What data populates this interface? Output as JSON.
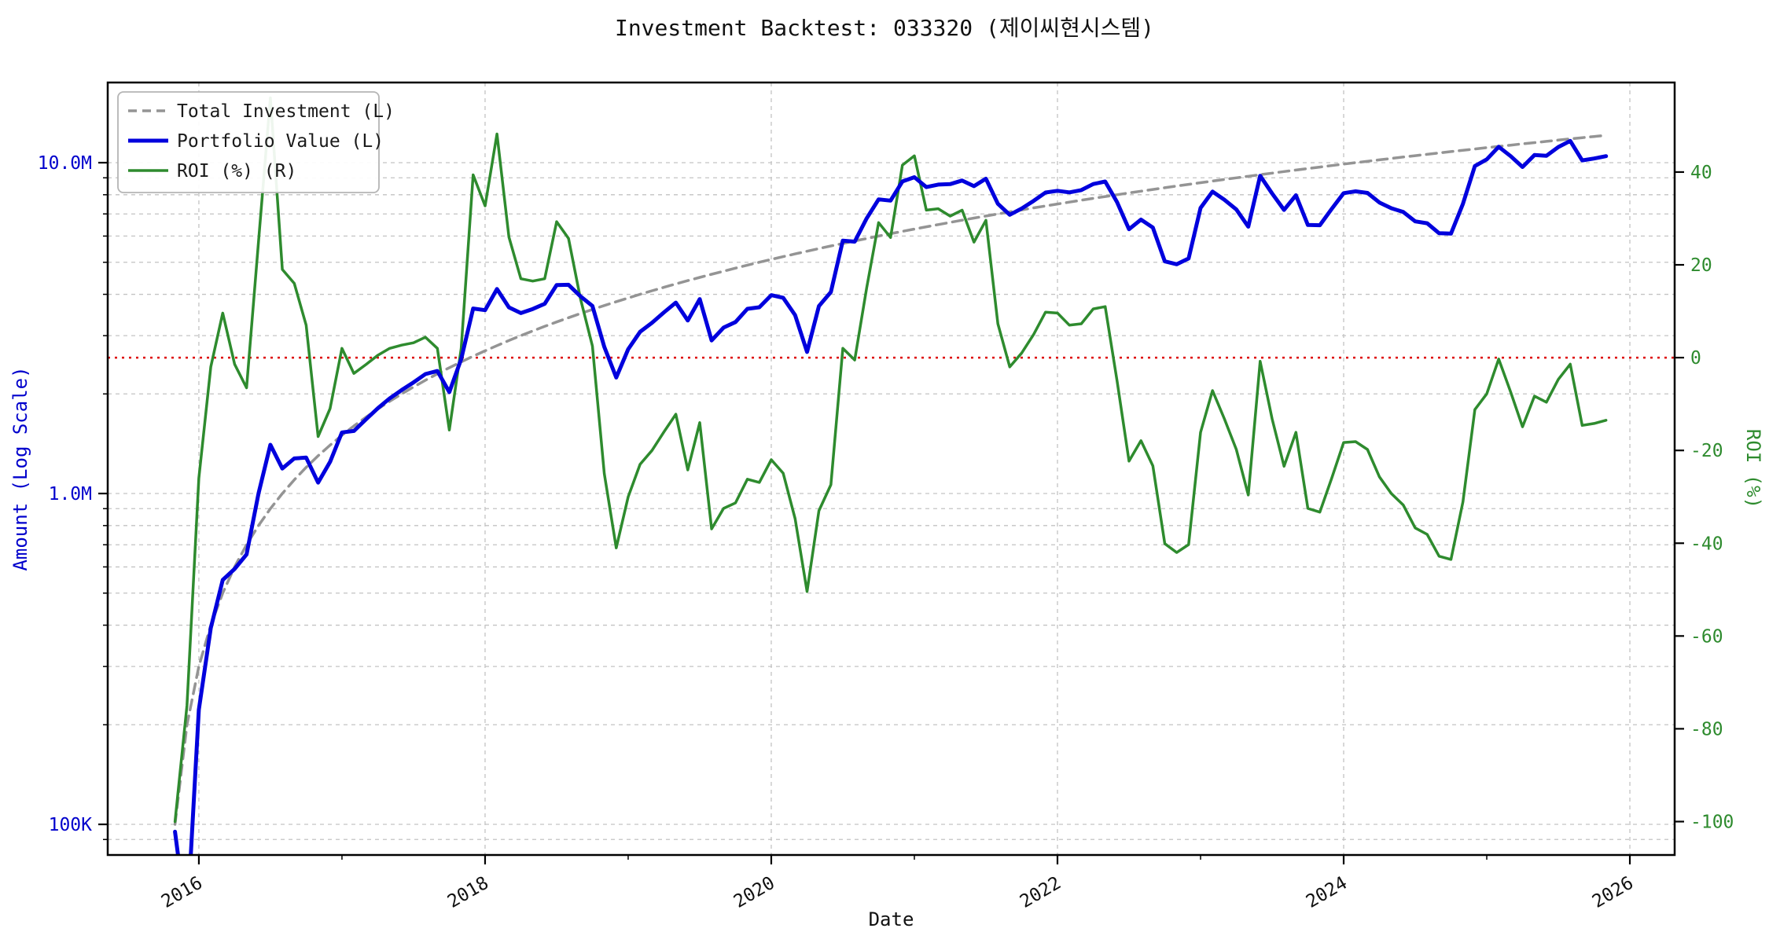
{
  "title": "Investment Backtest: 033320 (제이씨현시스템)",
  "legend": {
    "items": [
      {
        "label": "Total Investment (L)",
        "color": "#949494",
        "style": "dashed"
      },
      {
        "label": "Portfolio Value (L)",
        "color": "#0000dd",
        "style": "solid"
      },
      {
        "label": "ROI (%) (R)",
        "color": "#2e8b2e",
        "style": "solid"
      }
    ]
  },
  "chart_data": {
    "type": "line",
    "title": "Investment Backtest: 033320 (제이씨현시스템)",
    "xlabel": "Date",
    "left_axis": {
      "label": "Amount (Log Scale)",
      "scale": "log",
      "color": "#0000cc",
      "range": [
        80800,
        17470000
      ],
      "major_ticks": [
        {
          "value": 100000,
          "label": "100K"
        },
        {
          "value": 1000000,
          "label": "1.0M"
        },
        {
          "value": 10000000,
          "label": "10.0M"
        }
      ]
    },
    "right_axis": {
      "label": "ROI (%)",
      "color": "#2e8b2e",
      "range": [
        -107.2,
        59.3
      ],
      "major_ticks": [
        40,
        20,
        0,
        -20,
        -40,
        -60,
        -80,
        -100
      ]
    },
    "x_axis": {
      "label": "Date",
      "range_years": [
        2015.363,
        2026.313
      ],
      "major_ticks": [
        2016,
        2018,
        2020,
        2022,
        2024,
        2026
      ],
      "minor_ticks": [
        2017,
        2019,
        2021,
        2023,
        2025
      ]
    },
    "zero_line": {
      "value": 0,
      "color": "#dd0000",
      "style": "dotted",
      "axis": "right"
    },
    "grid": {
      "show": true,
      "color": "#c3c3c3"
    },
    "x": [
      "2015-11",
      "2015-12",
      "2016-01",
      "2016-02",
      "2016-03",
      "2016-04",
      "2016-05",
      "2016-06",
      "2016-07",
      "2016-08",
      "2016-09",
      "2016-10",
      "2016-11",
      "2016-12",
      "2017-01",
      "2017-02",
      "2017-03",
      "2017-04",
      "2017-05",
      "2017-06",
      "2017-07",
      "2017-08",
      "2017-09",
      "2017-10",
      "2017-11",
      "2017-12",
      "2018-01",
      "2018-02",
      "2018-03",
      "2018-04",
      "2018-05",
      "2018-06",
      "2018-07",
      "2018-08",
      "2018-09",
      "2018-10",
      "2018-11",
      "2018-12",
      "2019-01",
      "2019-02",
      "2019-03",
      "2019-04",
      "2019-05",
      "2019-06",
      "2019-07",
      "2019-08",
      "2019-09",
      "2019-10",
      "2019-11",
      "2019-12",
      "2020-01",
      "2020-02",
      "2020-03",
      "2020-04",
      "2020-05",
      "2020-06",
      "2020-07",
      "2020-08",
      "2020-09",
      "2020-10",
      "2020-11",
      "2020-12",
      "2021-01",
      "2021-02",
      "2021-03",
      "2021-04",
      "2021-05",
      "2021-06",
      "2021-07",
      "2021-08",
      "2021-09",
      "2021-10",
      "2021-11",
      "2021-12",
      "2022-01",
      "2022-02",
      "2022-03",
      "2022-04",
      "2022-05",
      "2022-06",
      "2022-07",
      "2022-08",
      "2022-09",
      "2022-10",
      "2022-11",
      "2022-12",
      "2023-01",
      "2023-02",
      "2023-03",
      "2023-04",
      "2023-05",
      "2023-06",
      "2023-07",
      "2023-08",
      "2023-09",
      "2023-10",
      "2023-11",
      "2023-12",
      "2024-01",
      "2024-02",
      "2024-03",
      "2024-04",
      "2024-05",
      "2024-06",
      "2024-07",
      "2024-08",
      "2024-09",
      "2024-10",
      "2024-11",
      "2024-12",
      "2025-01",
      "2025-02",
      "2025-03",
      "2025-04",
      "2025-05",
      "2025-06",
      "2025-07",
      "2025-08",
      "2025-09",
      "2025-10",
      "2025-11"
    ],
    "series": [
      {
        "name": "Total Investment (L)",
        "axis": "left",
        "color": "#949494",
        "style": "dashed",
        "rule": {
          "start": 100000,
          "monthly_add": 100000
        }
      },
      {
        "name": "Portfolio Value (L)",
        "axis": "left",
        "color": "#0000dd",
        "style": "solid",
        "values": [
          95000,
          50000,
          222000,
          392000,
          548000,
          591600,
          654500,
          1000000,
          1404000,
          1190000,
          1276000,
          1284000,
          1079000,
          1246000,
          1530000,
          1545600,
          1674500,
          1809000,
          1938000,
          2054000,
          2167200,
          2296800,
          2346000,
          2025600,
          2550000,
          3624400,
          3582900,
          4149600,
          3654000,
          3510000,
          3611500,
          3744000,
          4266900,
          4273800,
          3944500,
          3690000,
          2775000,
          2242000,
          2730000,
          3080000,
          3280000,
          3528000,
          3775400,
          3335200,
          3870000,
          2902600,
          3172500,
          3297600,
          3616200,
          3655000,
          3978000,
          3905200,
          3460900,
          2678400,
          3685000,
          4065600,
          5814000,
          5771000,
          6785000,
          7746000,
          7679900,
          8773000,
          9040500,
          8435200,
          8586500,
          8613000,
          8830600,
          8493200,
          8942400,
          7511000,
          6958000,
          7272000,
          7665000,
          8125200,
          8220000,
          8132000,
          8262100,
          8619000,
          8769000,
          7600000,
          6293700,
          6732200,
          6366100,
          5031600,
          4930000,
          5134200,
          7299300,
          8175200,
          7725200,
          7218000,
          6406400,
          9126400,
          8072400,
          7200400,
          7970500,
          6480000,
          6469900,
          7252000,
          8088300,
          8190000,
          8100200,
          7578600,
          7282100,
          7092800,
          6646500,
          6561400,
          6120400,
          6102000,
          7510100,
          9768000,
          10234200,
          11166400,
          10463800,
          9701400,
          10545500,
          10486400,
          11150100,
          11634800,
          10162600,
          10296000,
          10466500
        ]
      },
      {
        "name": "ROI (%) (R)",
        "axis": "right",
        "color": "#2e8b2e",
        "style": "solid",
        "values": [
          -100,
          -75,
          -26,
          -2,
          9.6,
          -1.4,
          -6.5,
          25,
          56,
          19,
          16,
          7,
          -17,
          -11,
          2,
          -3.4,
          -1.5,
          0.5,
          2,
          2.7,
          3.2,
          4.4,
          2,
          -15.6,
          2,
          39.4,
          32.7,
          48.2,
          26,
          17,
          16.5,
          17,
          29.3,
          25.7,
          12.7,
          2.5,
          -25,
          -41,
          -30,
          -23,
          -20,
          -16,
          -12.2,
          -24.2,
          -14,
          -36.9,
          -32.5,
          -31.3,
          -26.2,
          -26.9,
          -22,
          -24.9,
          -34.7,
          -50.4,
          -33,
          -27.4,
          2,
          -0.5,
          15,
          29.1,
          25.9,
          41.5,
          43.5,
          31.8,
          32.1,
          30.5,
          31.8,
          24.9,
          29.6,
          7.3,
          -2,
          1,
          5,
          9.8,
          9.6,
          7,
          7.3,
          10.5,
          11,
          -5,
          -22.3,
          -17.9,
          -23.3,
          -40.1,
          -42,
          -40.3,
          -16.1,
          -7.1,
          -13.2,
          -19.8,
          -29.6,
          -0.8,
          -13.2,
          -23.4,
          -16.1,
          -32.5,
          -33.3,
          -26,
          -18.3,
          -18.1,
          -19.8,
          -25.7,
          -29.3,
          -31.8,
          -36.7,
          -38.1,
          -42.8,
          -43.5,
          -31.1,
          -11.2,
          -7.8,
          -0.3,
          -7.4,
          -14.9,
          -8.3,
          -9.6,
          -4.7,
          -1.4,
          -14.6,
          -14.2,
          -13.5
        ]
      }
    ]
  }
}
